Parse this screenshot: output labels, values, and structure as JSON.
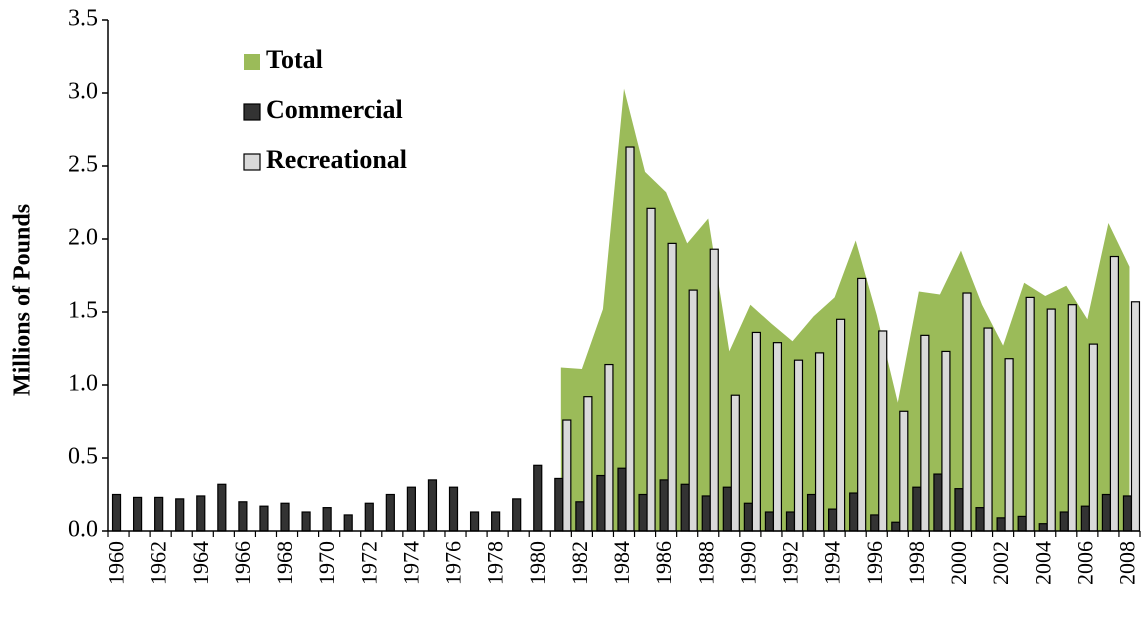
{
  "chart_data": {
    "type": "bar",
    "y_label": "Millions of Pounds",
    "categories": [
      "1960",
      null,
      "1962",
      null,
      "1964",
      null,
      "1966",
      null,
      "1968",
      null,
      "1970",
      null,
      "1972",
      null,
      "1974",
      null,
      "1976",
      null,
      "1978",
      null,
      "1980",
      null,
      "1982",
      null,
      "1984",
      null,
      "1986",
      null,
      "1988",
      null,
      "1990",
      null,
      "1992",
      null,
      "1994",
      null,
      "1996",
      null,
      "1998",
      null,
      "2000",
      null,
      "2002",
      null,
      "2004",
      null,
      "2006",
      null,
      "2008"
    ],
    "series": [
      {
        "name": "Total",
        "type": "area",
        "color": "#9bbb59",
        "values": [
          null,
          null,
          null,
          null,
          null,
          null,
          null,
          null,
          null,
          null,
          null,
          null,
          null,
          null,
          null,
          null,
          null,
          null,
          null,
          null,
          null,
          1.12,
          1.11,
          1.52,
          3.03,
          2.46,
          2.32,
          1.97,
          2.14,
          1.23,
          1.55,
          1.42,
          1.3,
          1.47,
          1.6,
          1.99,
          1.48,
          0.88,
          1.64,
          1.62,
          1.92,
          1.55,
          1.27,
          1.7,
          1.61,
          1.68,
          1.45,
          2.11,
          1.81
        ]
      },
      {
        "name": "Commercial",
        "type": "bar",
        "color": "#333333",
        "values": [
          0.25,
          0.23,
          0.23,
          0.22,
          0.24,
          0.32,
          0.2,
          0.17,
          0.19,
          0.13,
          0.16,
          0.11,
          0.19,
          0.25,
          0.3,
          0.35,
          0.3,
          0.13,
          0.13,
          0.22,
          0.45,
          0.36,
          0.2,
          0.38,
          0.43,
          0.25,
          0.35,
          0.32,
          0.24,
          0.3,
          0.19,
          0.13,
          0.13,
          0.25,
          0.15,
          0.26,
          0.11,
          0.06,
          0.3,
          0.39,
          0.29,
          0.16,
          0.09,
          0.1,
          0.05,
          0.13,
          0.17,
          0.25,
          0.24
        ]
      },
      {
        "name": "Recreational",
        "type": "bar",
        "color": "#d9d9d9",
        "values": [
          null,
          null,
          null,
          null,
          null,
          null,
          null,
          null,
          null,
          null,
          null,
          null,
          null,
          null,
          null,
          null,
          null,
          null,
          null,
          null,
          null,
          0.76,
          0.92,
          1.14,
          2.63,
          2.21,
          1.97,
          1.65,
          1.93,
          0.93,
          1.36,
          1.29,
          1.17,
          1.22,
          1.45,
          1.73,
          1.37,
          0.82,
          1.34,
          1.23,
          1.63,
          1.39,
          1.18,
          1.6,
          1.52,
          1.55,
          1.28,
          1.88,
          1.57
        ]
      }
    ],
    "ylim": [
      0,
      3.5
    ],
    "yticks": [
      {
        "value": 0,
        "label": "0.0"
      },
      0.5,
      {
        "value": 1,
        "label": "1.0"
      },
      1.5,
      {
        "value": 2,
        "label": "2.0"
      },
      2.5,
      {
        "value": 3,
        "label": "3.0"
      },
      3.5
    ],
    "grid": false
  }
}
